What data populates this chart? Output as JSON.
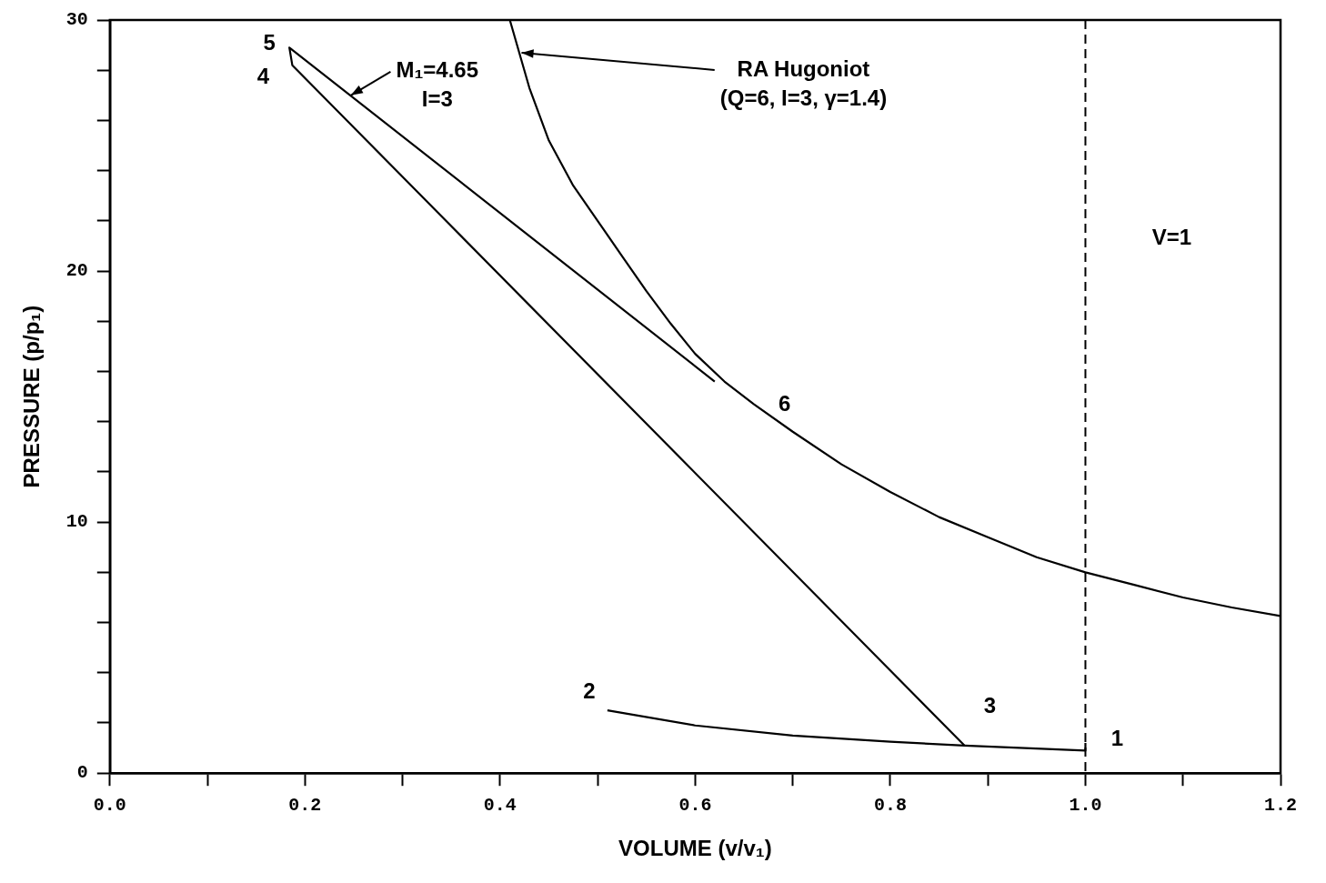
{
  "chart_data": {
    "type": "line",
    "xlabel": "VOLUME (v/v₁)",
    "ylabel": "PRESSURE (p/p₁)",
    "xlim": [
      0,
      1.2
    ],
    "ylim": [
      0,
      30
    ],
    "xticks": [
      {
        "value": 0,
        "label": "0.0"
      },
      {
        "value": 0.1,
        "label": null
      },
      {
        "value": 0.2,
        "label": "0.2"
      },
      {
        "value": 0.3,
        "label": null
      },
      {
        "value": 0.4,
        "label": "0.4"
      },
      {
        "value": 0.5,
        "label": null
      },
      {
        "value": 0.6,
        "label": "0.6"
      },
      {
        "value": 0.7,
        "label": null
      },
      {
        "value": 0.8,
        "label": "0.8"
      },
      {
        "value": 0.9,
        "label": null
      },
      {
        "value": 1,
        "label": "1.0"
      },
      {
        "value": 1.1,
        "label": null
      },
      {
        "value": 1.2,
        "label": "1.2"
      }
    ],
    "yticks": [
      0,
      {
        "value": 2,
        "label": null
      },
      {
        "value": 4,
        "label": null
      },
      {
        "value": 6,
        "label": null
      },
      {
        "value": 8,
        "label": null
      },
      10,
      {
        "value": 12,
        "label": null
      },
      {
        "value": 14,
        "label": null
      },
      {
        "value": 16,
        "label": null
      },
      {
        "value": 18,
        "label": null
      },
      20,
      {
        "value": 22,
        "label": null
      },
      {
        "value": 24,
        "label": null
      },
      {
        "value": 26,
        "label": null
      },
      {
        "value": 28,
        "label": null
      },
      30
    ],
    "grid": false,
    "legend": false,
    "marker": "none",
    "line_style": "solid",
    "series": [
      {
        "color": "#000000",
        "x": [
          0.41,
          0.43,
          0.45,
          0.475,
          0.5,
          0.525,
          0.55,
          0.575,
          0.6,
          0.63,
          0.66,
          0.7,
          0.75,
          0.8,
          0.85,
          0.9,
          0.95,
          1.0,
          1.05,
          1.1,
          1.15,
          1.2
        ],
        "values": [
          30,
          27.3,
          25.2,
          23.4,
          22,
          20.6,
          19.2,
          17.9,
          16.7,
          15.6,
          14.7,
          13.6,
          12.3,
          11.2,
          10.2,
          9.4,
          8.6,
          8.0,
          7.5,
          7.0,
          6.6,
          6.26
        ]
      },
      {
        "color": "#000000",
        "x": [
          0.51,
          0.6,
          0.7,
          0.8,
          0.876,
          1.0,
          1.0
        ],
        "values": [
          2.5,
          1.9,
          1.5,
          1.25,
          1.1,
          0.9,
          1.2
        ]
      },
      {
        "color": "#000000",
        "x": [
          0.876,
          0.187,
          0.184,
          0.62
        ],
        "values": [
          1.1,
          28.2,
          28.9,
          15.6
        ]
      }
    ],
    "ref_lines": [
      {
        "axis": "x",
        "value": 1,
        "label": "V=1",
        "line_style": "dashed",
        "color": "#000000"
      }
    ],
    "annotations": [
      {
        "text": "1",
        "x": 1.0,
        "y": 0.9
      },
      {
        "text": "2",
        "x": 0.51,
        "y": 2.5
      },
      {
        "text": "3",
        "x": 0.876,
        "y": 1.1
      },
      {
        "text": "4",
        "x": 0.187,
        "y": 28.2
      },
      {
        "text": "5",
        "x": 0.184,
        "y": 28.9
      },
      {
        "text": "6",
        "x": 0.66,
        "y": 14.6
      },
      {
        "text": "M₁=4.65\nI=3",
        "x": 0.247,
        "y": 27.0
      },
      {
        "text": "RA Hugoniot\n(Q=6, I=3, γ=1.4)",
        "x": 0.422,
        "y": 28.7
      }
    ]
  }
}
